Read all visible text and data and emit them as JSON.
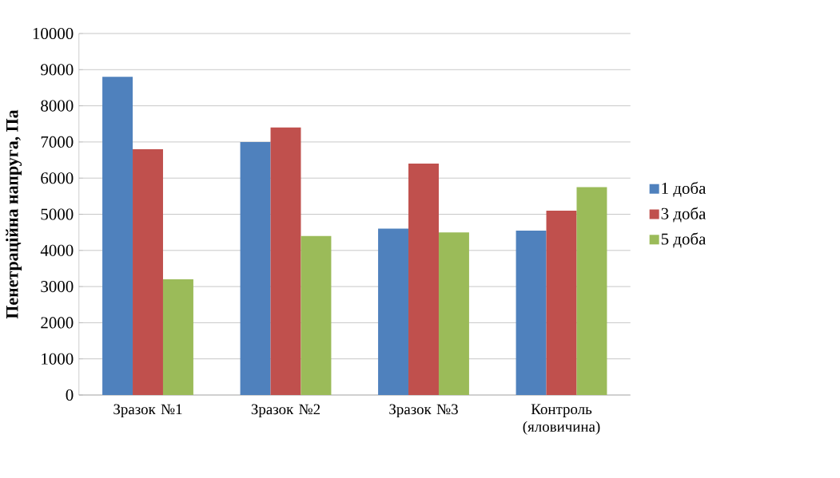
{
  "chart_data": {
    "type": "bar",
    "ylabel": "Пенетраційна напруга, Па",
    "categories": [
      "Зразок №1",
      "Зразок №2",
      "Зразок №3",
      "Контроль (яловичина)"
    ],
    "series": [
      {
        "name": "1 доба",
        "color": "#4f81bd",
        "values": [
          8800,
          7000,
          4600,
          4550
        ]
      },
      {
        "name": "3 доба",
        "color": "#c0504d",
        "values": [
          6800,
          7400,
          6400,
          5100
        ]
      },
      {
        "name": "5 доба",
        "color": "#9bbb59",
        "values": [
          3200,
          4400,
          4500,
          5750
        ]
      }
    ],
    "ylim": [
      0,
      10000
    ],
    "yticks": [
      0,
      1000,
      2000,
      3000,
      4000,
      5000,
      6000,
      7000,
      8000,
      9000,
      10000
    ],
    "grid": "y",
    "legend": "right"
  }
}
